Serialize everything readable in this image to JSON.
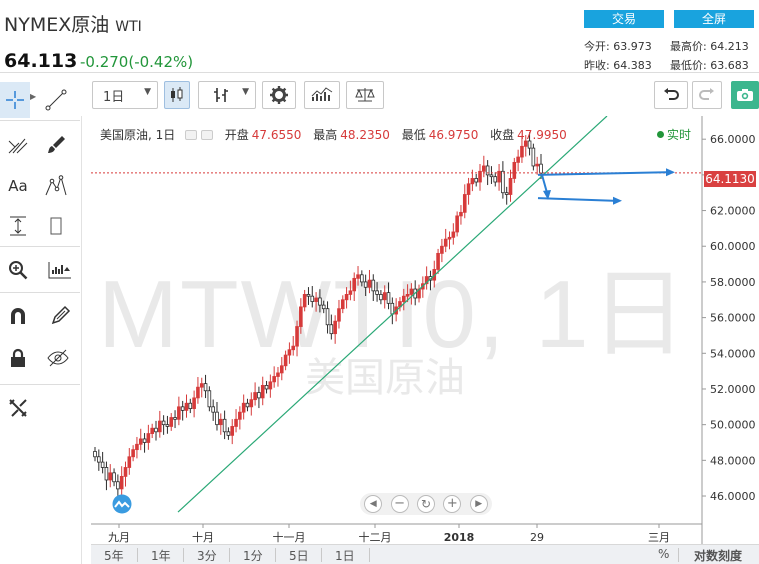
{
  "header": {
    "title": "NYMEX原油",
    "symbol": "WTI",
    "price": "64.113",
    "change": "-0.270(-0.42%)",
    "trade_button": "交易",
    "fullscreen_button": "全屏",
    "stats": {
      "open_label": "今开:",
      "open": "63.973",
      "high_label": "最高价:",
      "high": "64.213",
      "prev_label": "昨收:",
      "prev": "64.383",
      "low_label": "最低价:",
      "low": "63.683"
    }
  },
  "toolbar": {
    "interval": "1日"
  },
  "legend": {
    "name": "美国原油, 1日",
    "open_label": "开盘",
    "open": "47.6550",
    "high_label": "最高",
    "high": "48.2350",
    "low_label": "最低",
    "low": "46.9750",
    "close_label": "收盘",
    "close": "47.9950",
    "realtime": "实时"
  },
  "watermark": {
    "code": "MTWTI0, 1日",
    "name": "美国原油"
  },
  "last_price_tag": "64.1130",
  "range_bar": [
    "5年",
    "1年",
    "3分",
    "1分",
    "5日",
    "1日"
  ],
  "range_right": {
    "percent": "%",
    "log": "对数刻度"
  },
  "left_tools": [
    "crosshair-icon",
    "trend-line-icon",
    "pitchfork-icon",
    "brush-icon",
    "text-icon",
    "pattern-icon",
    "measure-icon",
    "ruler-icon",
    "zoom-icon",
    "long-position-icon",
    "magnet-icon",
    "pencil-lock-icon",
    "lock-icon",
    "eye-off-icon",
    "remove-tools-icon"
  ],
  "colors": {
    "up": "#d63a3a",
    "down": "#2b2b2b",
    "trend": "#2aa876",
    "arrow": "#2a7fd4",
    "accent": "#19a3de"
  },
  "chart_data": {
    "type": "candlestick",
    "y_ticks": [
      "66.0000",
      "64.0000",
      "62.0000",
      "60.0000",
      "58.0000",
      "56.0000",
      "54.0000",
      "52.0000",
      "50.0000",
      "48.0000",
      "46.0000"
    ],
    "x_ticks": [
      "九月",
      "十月",
      "十一月",
      "十二月",
      "2018",
      "29",
      "三月"
    ],
    "ylim": [
      44.6,
      67.3
    ],
    "last_price": 64.113,
    "closes": [
      48.2,
      47.9,
      47.6,
      46.9,
      47.3,
      46.8,
      46.4,
      47.1,
      47.6,
      48.2,
      48.6,
      48.9,
      49.2,
      49.0,
      49.5,
      49.8,
      49.6,
      50.2,
      50.0,
      49.9,
      50.4,
      50.3,
      51.0,
      50.8,
      51.2,
      50.9,
      51.5,
      52.1,
      52.3,
      51.9,
      51.0,
      50.7,
      50.0,
      50.3,
      49.6,
      49.4,
      49.9,
      50.3,
      50.7,
      51.2,
      51.0,
      51.4,
      51.8,
      51.5,
      52.2,
      52.0,
      52.4,
      52.7,
      52.9,
      53.3,
      53.9,
      54.2,
      54.4,
      55.5,
      56.6,
      57.3,
      57.2,
      56.9,
      57.1,
      56.7,
      56.5,
      55.6,
      55.1,
      55.8,
      56.5,
      57.0,
      57.3,
      57.5,
      58.2,
      58.4,
      58.0,
      57.7,
      58.1,
      57.5,
      57.3,
      57.0,
      57.4,
      56.8,
      56.2,
      56.6,
      56.9,
      57.2,
      57.3,
      57.6,
      57.1,
      57.6,
      57.9,
      58.3,
      58.1,
      58.7,
      59.6,
      60.0,
      60.4,
      60.5,
      60.8,
      61.7,
      61.9,
      62.9,
      63.5,
      63.8,
      63.6,
      64.2,
      64.5,
      64.0,
      63.9,
      63.6,
      64.2,
      63.0,
      62.9,
      63.8,
      64.7,
      65.0,
      65.6,
      65.9,
      65.5,
      64.5,
      64.6,
      64.1
    ],
    "trendline": {
      "from": [
        "2017-08",
        45.0
      ],
      "to": [
        "2018-02",
        67.0
      ]
    },
    "annotations": [
      "horizontal arrow near 64.0",
      "horizontal arrow near 62.7"
    ]
  }
}
